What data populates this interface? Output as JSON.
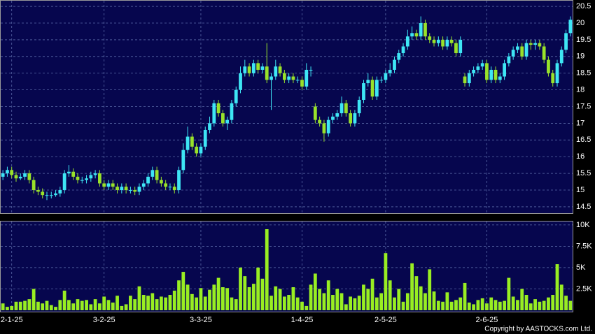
{
  "chart_data": [
    {
      "type": "candlestick",
      "categories": [
        null,
        null,
        "2-1-25",
        null,
        null,
        null,
        null,
        null,
        null,
        null,
        null,
        null,
        null,
        null,
        null,
        null,
        null,
        null,
        null,
        null,
        null,
        null,
        null,
        "3-2-25",
        null,
        null,
        null,
        null,
        null,
        null,
        null,
        null,
        null,
        null,
        null,
        null,
        null,
        null,
        null,
        null,
        null,
        null,
        null,
        null,
        null,
        "3-3-25",
        null,
        null,
        null,
        null,
        null,
        null,
        null,
        null,
        null,
        null,
        null,
        null,
        null,
        null,
        null,
        null,
        null,
        null,
        null,
        null,
        null,
        null,
        "1-4-25",
        null,
        null,
        null,
        null,
        null,
        null,
        null,
        null,
        null,
        null,
        null,
        null,
        null,
        null,
        null,
        null,
        null,
        null,
        "2-5-25",
        null,
        null,
        null,
        null,
        null,
        null,
        null,
        null,
        null,
        null,
        null,
        null,
        null,
        null,
        null,
        null,
        null,
        null,
        null,
        null,
        null,
        null,
        "2-6-25",
        null,
        null,
        null,
        null,
        null,
        null,
        null,
        null,
        null,
        null,
        null,
        null,
        null,
        null,
        null,
        null,
        null,
        null,
        null
      ],
      "open": [
        15.4,
        15.5,
        15.6,
        15.45,
        15.35,
        15.4,
        15.5,
        15.3,
        15.0,
        14.95,
        14.85,
        14.85,
        14.85,
        14.9,
        15.0,
        15.5,
        15.55,
        15.4,
        15.3,
        15.3,
        15.35,
        15.45,
        15.5,
        15.2,
        15.1,
        15.2,
        15.1,
        15.0,
        15.1,
        15.0,
        15.0,
        14.95,
        15.1,
        15.2,
        15.4,
        15.6,
        15.3,
        15.2,
        15.1,
        15.1,
        15.0,
        15.6,
        16.2,
        16.6,
        16.3,
        16.1,
        16.3,
        16.8,
        17.0,
        17.6,
        17.3,
        17.0,
        17.1,
        17.6,
        18.0,
        18.5,
        18.7,
        18.5,
        18.8,
        18.6,
        18.7,
        18.3,
        18.4,
        18.7,
        18.5,
        18.3,
        18.4,
        18.3,
        18.3,
        18.1,
        18.6,
        17.5,
        17.1,
        17.0,
        16.7,
        17.1,
        17.2,
        17.3,
        17.6,
        17.3,
        17.0,
        17.3,
        17.7,
        18.2,
        18.3,
        17.8,
        18.3,
        18.3,
        18.5,
        18.6,
        18.9,
        19.1,
        19.3,
        19.6,
        19.7,
        19.6,
        20.0,
        19.6,
        19.5,
        19.4,
        19.5,
        19.3,
        19.5,
        19.4,
        19.1,
        18.4,
        18.2,
        18.5,
        18.6,
        18.7,
        18.8,
        18.3,
        18.6,
        18.3,
        18.4,
        18.8,
        19.0,
        19.2,
        19.3,
        19.0,
        19.4,
        19.35,
        19.4,
        19.3,
        18.9,
        18.5,
        18.2,
        18.8,
        19.2,
        19.7
      ],
      "high": [
        15.6,
        15.7,
        15.7,
        15.55,
        15.5,
        15.6,
        15.6,
        15.4,
        15.1,
        15.05,
        14.95,
        14.95,
        15.0,
        15.1,
        15.6,
        15.75,
        15.65,
        15.5,
        15.4,
        15.45,
        15.55,
        15.6,
        15.6,
        15.3,
        15.3,
        15.3,
        15.2,
        15.2,
        15.2,
        15.1,
        15.1,
        15.2,
        15.3,
        15.5,
        15.7,
        15.7,
        15.4,
        15.3,
        15.2,
        15.2,
        15.7,
        16.4,
        16.9,
        16.7,
        16.4,
        16.4,
        16.9,
        17.2,
        17.7,
        17.7,
        17.4,
        17.2,
        17.7,
        18.1,
        18.7,
        18.9,
        18.8,
        18.9,
        18.9,
        18.8,
        19.4,
        18.5,
        18.9,
        18.8,
        18.6,
        18.5,
        18.5,
        18.4,
        18.4,
        18.8,
        18.7,
        17.6,
        17.2,
        17.1,
        17.2,
        17.3,
        17.4,
        17.8,
        17.7,
        17.4,
        17.4,
        17.8,
        18.3,
        18.5,
        18.4,
        18.4,
        18.4,
        18.6,
        18.8,
        19.0,
        19.2,
        19.4,
        19.8,
        19.9,
        19.8,
        20.2,
        20.1,
        19.7,
        19.6,
        19.6,
        19.6,
        19.6,
        19.6,
        19.5,
        19.6,
        18.5,
        18.6,
        18.7,
        18.8,
        18.9,
        18.9,
        18.7,
        18.7,
        18.5,
        18.9,
        19.1,
        19.3,
        19.4,
        19.4,
        19.5,
        19.5,
        19.5,
        19.5,
        19.4,
        19.0,
        18.6,
        18.9,
        19.3,
        19.8,
        20.2
      ],
      "low": [
        15.3,
        15.4,
        15.35,
        15.25,
        15.3,
        15.3,
        15.2,
        14.9,
        14.85,
        14.75,
        14.7,
        14.75,
        14.8,
        14.8,
        14.9,
        15.4,
        15.3,
        15.2,
        15.2,
        15.2,
        15.25,
        15.35,
        15.1,
        15.0,
        15.0,
        15.0,
        14.9,
        14.9,
        14.9,
        14.9,
        14.85,
        14.85,
        15.0,
        15.1,
        15.3,
        15.2,
        15.1,
        15.0,
        15.0,
        14.9,
        14.9,
        15.5,
        16.1,
        16.2,
        16.0,
        16.0,
        16.2,
        16.7,
        16.9,
        17.2,
        16.9,
        16.8,
        17.0,
        17.5,
        17.9,
        18.4,
        18.4,
        18.4,
        18.5,
        18.5,
        18.2,
        17.4,
        18.3,
        18.4,
        18.2,
        18.2,
        18.2,
        18.2,
        18.0,
        18.0,
        18.4,
        17.0,
        16.9,
        16.45,
        16.6,
        17.0,
        17.1,
        17.2,
        17.2,
        16.9,
        16.9,
        17.2,
        17.6,
        18.1,
        17.7,
        17.7,
        18.2,
        18.2,
        18.4,
        18.5,
        18.8,
        19.0,
        19.2,
        19.5,
        19.5,
        19.5,
        19.5,
        19.4,
        19.3,
        19.3,
        19.2,
        19.2,
        19.3,
        19.0,
        19.0,
        18.1,
        18.1,
        18.4,
        18.5,
        18.6,
        18.2,
        18.2,
        18.2,
        18.2,
        18.3,
        18.7,
        18.9,
        19.1,
        18.9,
        18.9,
        19.2,
        19.2,
        19.2,
        18.8,
        18.4,
        18.1,
        18.1,
        18.7,
        19.1,
        19.6
      ],
      "close": [
        15.5,
        15.6,
        15.45,
        15.35,
        15.4,
        15.5,
        15.3,
        15.0,
        14.95,
        14.85,
        14.85,
        14.85,
        14.9,
        15.0,
        15.5,
        15.55,
        15.4,
        15.3,
        15.3,
        15.35,
        15.45,
        15.5,
        15.2,
        15.1,
        15.2,
        15.1,
        15.0,
        15.1,
        15.0,
        15.0,
        14.95,
        15.1,
        15.2,
        15.4,
        15.6,
        15.3,
        15.2,
        15.1,
        15.1,
        15.0,
        15.6,
        16.2,
        16.6,
        16.3,
        16.1,
        16.3,
        16.8,
        17.0,
        17.6,
        17.3,
        17.0,
        17.1,
        17.6,
        18.0,
        18.5,
        18.7,
        18.5,
        18.8,
        18.6,
        18.7,
        18.3,
        18.4,
        18.7,
        18.5,
        18.3,
        18.4,
        18.3,
        18.3,
        18.1,
        18.6,
        18.6,
        17.1,
        17.0,
        16.7,
        17.1,
        17.2,
        17.3,
        17.6,
        17.3,
        17.0,
        17.3,
        17.7,
        18.2,
        18.3,
        17.8,
        18.3,
        18.3,
        18.5,
        18.6,
        18.9,
        19.1,
        19.3,
        19.6,
        19.7,
        19.6,
        20.0,
        19.6,
        19.5,
        19.4,
        19.5,
        19.3,
        19.5,
        19.4,
        19.1,
        19.5,
        18.2,
        18.5,
        18.6,
        18.7,
        18.8,
        18.3,
        18.6,
        18.3,
        18.4,
        18.8,
        19.0,
        19.2,
        19.3,
        19.0,
        19.4,
        19.35,
        19.4,
        19.3,
        18.9,
        18.5,
        18.2,
        18.8,
        19.2,
        19.7,
        20.1
      ],
      "up_color": "#3ee6f5",
      "down_color": "#99e22a",
      "ylim": [
        14.31,
        20.67
      ],
      "yticks": [
        14.5,
        15,
        15.5,
        16,
        16.5,
        17,
        17.5,
        18,
        18.5,
        19,
        19.5,
        20,
        20.5
      ],
      "grid": true
    },
    {
      "type": "bar",
      "values": [
        800,
        400,
        500,
        1000,
        1000,
        1100,
        1300,
        2500,
        1000,
        800,
        1100,
        600,
        400,
        1200,
        2300,
        1200,
        800,
        1300,
        1100,
        1200,
        700,
        1300,
        800,
        1600,
        1200,
        900,
        1700,
        500,
        700,
        1700,
        1300,
        2800,
        1800,
        1700,
        2000,
        1300,
        1600,
        1500,
        1800,
        2300,
        3500,
        4500,
        3000,
        1900,
        1500,
        2600,
        1600,
        2400,
        3000,
        3800,
        2700,
        2600,
        1500,
        1300,
        5000,
        4000,
        2700,
        3100,
        5000,
        3700,
        9500,
        1700,
        2800,
        2500,
        1600,
        1800,
        2700,
        1500,
        1000,
        500,
        3000,
        4300,
        2500,
        2000,
        3500,
        1800,
        2500,
        2000,
        700,
        1600,
        1400,
        1700,
        3000,
        2500,
        3700,
        1500,
        2000,
        6700,
        3500,
        1500,
        2500,
        1000,
        2000,
        5500,
        4000,
        2800,
        2000,
        4800,
        2200,
        1100,
        1000,
        2100,
        1000,
        1200,
        1500,
        3200,
        900,
        700,
        1200,
        1400,
        800,
        1500,
        1200,
        1000,
        1100,
        3800,
        1600,
        1200,
        2500,
        1800,
        800,
        1300,
        1000,
        1100,
        1500,
        1800,
        5400,
        3000,
        1700,
        1100
      ],
      "color": "#99ee22",
      "ylim": [
        0,
        10400
      ],
      "yticks": [
        {
          "value": 2500,
          "label": "2.5K"
        },
        {
          "value": 5000,
          "label": "5K"
        },
        {
          "value": 7500,
          "label": "7.5K"
        },
        {
          "value": 10000,
          "label": "10K"
        }
      ],
      "grid": true
    }
  ],
  "footer": "Copyright by AASTOCKS.com Ltd."
}
